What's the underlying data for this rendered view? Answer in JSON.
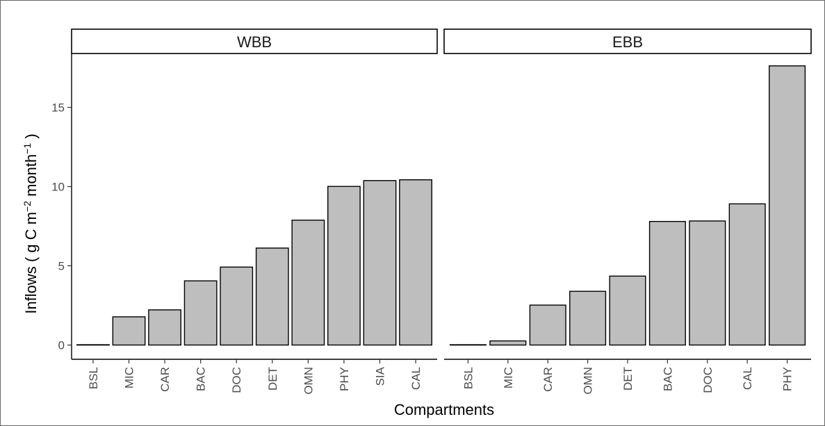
{
  "chart_data": {
    "type": "bar",
    "ylabel_parts": [
      "Inflows ( g C m",
      "−2",
      " month",
      "−1",
      " )"
    ],
    "xlabel": "Compartments",
    "ylim": [
      -0.9,
      18.4
    ],
    "yticks": [
      0,
      5,
      10,
      15
    ],
    "bar_color": "#bebebe",
    "panels": [
      {
        "title": "WBB",
        "categories": [
          "BSL",
          "MIC",
          "CAR",
          "BAC",
          "DOC",
          "DET",
          "OMN",
          "PHY",
          "SIA",
          "CAL"
        ],
        "values": [
          0.02,
          1.78,
          2.22,
          4.05,
          4.92,
          6.12,
          7.88,
          10.01,
          10.38,
          10.43
        ]
      },
      {
        "title": "EBB",
        "categories": [
          "BSL",
          "MIC",
          "CAR",
          "OMN",
          "DET",
          "BAC",
          "DOC",
          "CAL",
          "PHY"
        ],
        "values": [
          0.02,
          0.26,
          2.52,
          3.39,
          4.35,
          7.8,
          7.83,
          8.91,
          17.62
        ]
      }
    ]
  }
}
